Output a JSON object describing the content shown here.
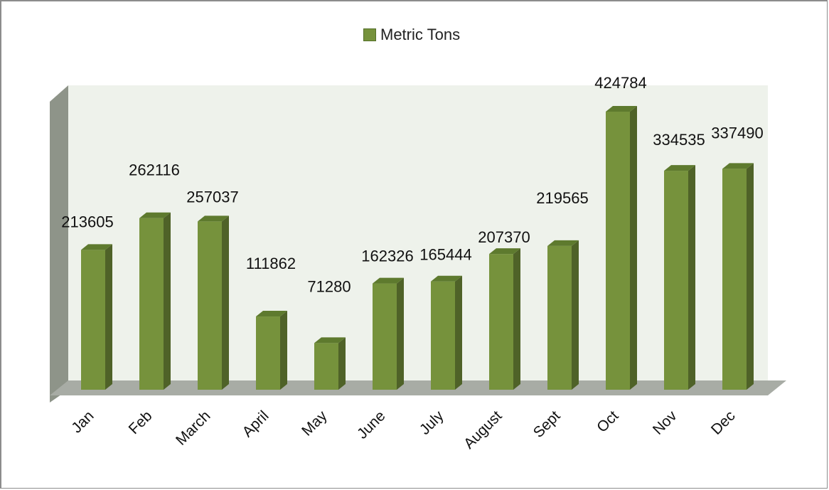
{
  "chart_data": {
    "type": "bar",
    "style": "3d-column",
    "categories": [
      "Jan",
      "Feb",
      "March",
      "April",
      "May",
      "June",
      "July",
      "August",
      "Sept",
      "Oct",
      "Nov",
      "Dec"
    ],
    "series": [
      {
        "name": "Metric Tons",
        "values": [
          213605,
          262116,
          257037,
          111862,
          71280,
          162326,
          165444,
          207370,
          219565,
          424784,
          334535,
          337490
        ]
      }
    ],
    "legend": {
      "label": "Metric Tons",
      "position": "top"
    },
    "data_labels": true,
    "ylim": [
      0,
      430000
    ],
    "grid": false,
    "colors": {
      "bar_front": "#76923c",
      "bar_side": "#4f6228",
      "bar_top": "#5e7a2e",
      "back_wall": "#eef2eb",
      "side_wall": "#8e9489",
      "floor": "#a8aca5"
    }
  }
}
